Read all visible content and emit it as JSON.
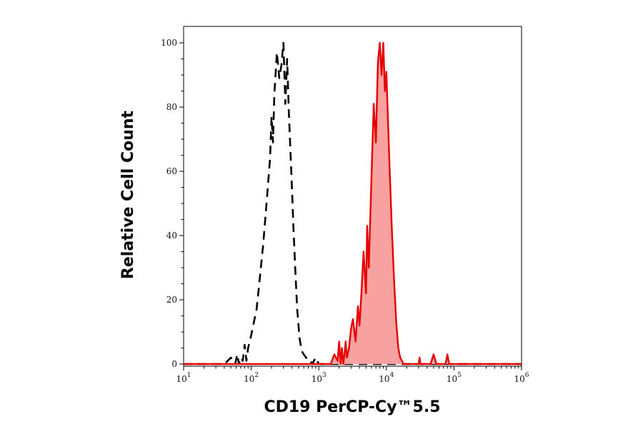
{
  "chart_data": {
    "type": "area",
    "xscale": "log",
    "xlim": [
      10,
      1000000
    ],
    "ylim": [
      0,
      100
    ],
    "xlabel": "CD19 PerCP-Cy™5.5",
    "ylabel": "Relative Cell Count",
    "x_ticks": [
      {
        "base": "10",
        "exp": "1"
      },
      {
        "base": "10",
        "exp": "2"
      },
      {
        "base": "10",
        "exp": "3"
      },
      {
        "base": "10",
        "exp": "4"
      },
      {
        "base": "10",
        "exp": "5"
      },
      {
        "base": "10",
        "exp": "6"
      }
    ],
    "y_ticks": [
      0,
      20,
      40,
      60,
      80,
      100
    ],
    "grid": false,
    "series": [
      {
        "style": "dashed",
        "color": "#000000",
        "fill": "none",
        "x": [
          10,
          40,
          45,
          50,
          55,
          58,
          62,
          66,
          70,
          75,
          80,
          85,
          90,
          100,
          120,
          130,
          150,
          170,
          190,
          200,
          210,
          220,
          240,
          260,
          280,
          300,
          320,
          340,
          360,
          380,
          400,
          420,
          450,
          480,
          520,
          560,
          600,
          650,
          700,
          750,
          800,
          900,
          1000,
          1000000
        ],
        "y": [
          0,
          0,
          1,
          2,
          1,
          0,
          3,
          0,
          2,
          1,
          6,
          1,
          5,
          9,
          17,
          24,
          37,
          51,
          64,
          77,
          69,
          84,
          97,
          89,
          93,
          100,
          81,
          95,
          79,
          67,
          55,
          43,
          29,
          17,
          8,
          4,
          3,
          2,
          1,
          1,
          0,
          2,
          0,
          0
        ]
      },
      {
        "style": "solid",
        "color": "#e60000",
        "fill": "#f7a1a1",
        "x": [
          10,
          1500,
          1700,
          1900,
          2000,
          2100,
          2200,
          2300,
          2400,
          2500,
          2600,
          2800,
          3000,
          3200,
          3500,
          3800,
          4000,
          4300,
          4600,
          5000,
          5200,
          5500,
          6000,
          6500,
          7000,
          7500,
          8000,
          8500,
          9000,
          9500,
          10000,
          11000,
          12000,
          13000,
          14000,
          15000,
          16000,
          17000,
          18000,
          20000,
          30000,
          31000,
          32000,
          45000,
          50000,
          55000,
          75000,
          80000,
          85000,
          1000000
        ],
        "y": [
          0,
          0,
          3,
          1,
          7,
          0,
          5,
          0,
          3,
          7,
          2,
          5,
          11,
          14,
          7,
          18,
          12,
          23,
          35,
          22,
          43,
          30,
          57,
          81,
          69,
          94,
          100,
          90,
          100,
          85,
          91,
          65,
          43,
          26,
          13,
          5,
          2,
          1,
          0,
          0,
          0,
          2,
          0,
          0,
          3,
          0,
          0,
          3,
          0,
          0
        ]
      }
    ]
  }
}
